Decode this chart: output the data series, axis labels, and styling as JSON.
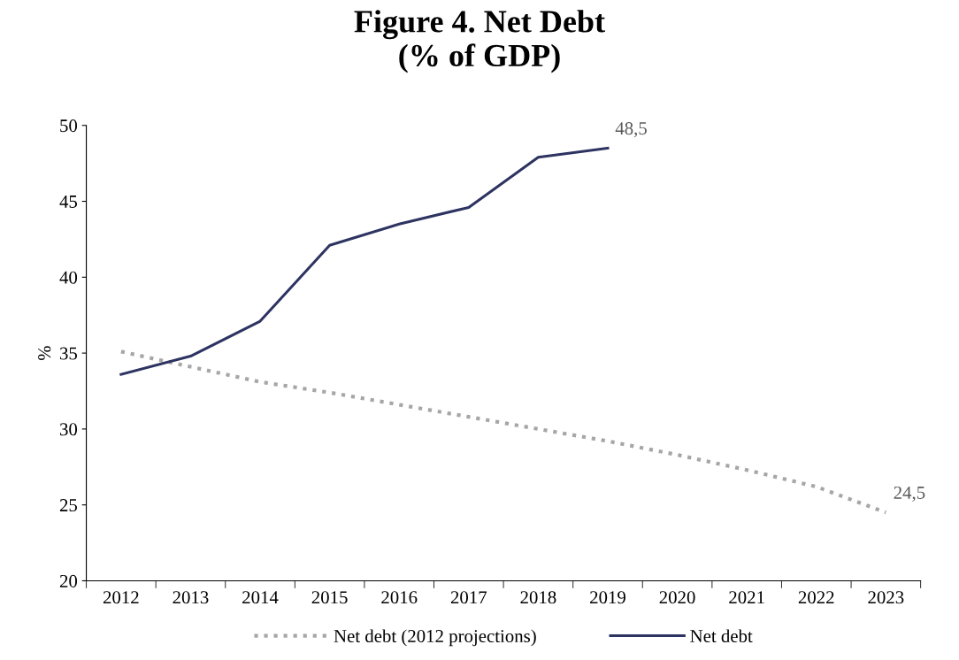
{
  "chart_data": {
    "type": "line",
    "title": "Figure 4. Net Debt\n(% of GDP)",
    "ylabel": "%",
    "categories": [
      "2012",
      "2013",
      "2014",
      "2015",
      "2016",
      "2017",
      "2018",
      "2019",
      "2020",
      "2021",
      "2022",
      "2023"
    ],
    "series": [
      {
        "name": "Net debt (2012 projections)",
        "color": "#a6a6a6",
        "line_style": "dotted",
        "values": [
          35.1,
          34.1,
          33.1,
          32.4,
          31.6,
          30.8,
          30.0,
          29.2,
          28.3,
          27.3,
          26.2,
          24.5
        ],
        "value_labels": [
          null,
          null,
          null,
          null,
          null,
          null,
          null,
          null,
          null,
          null,
          null,
          "24,5"
        ]
      },
      {
        "name": "Net debt",
        "color": "#2e3461",
        "line_style": "solid",
        "values": [
          33.6,
          34.8,
          37.1,
          42.1,
          43.5,
          44.6,
          47.9,
          48.5,
          null,
          null,
          null,
          null
        ],
        "value_labels": [
          null,
          null,
          null,
          null,
          null,
          null,
          null,
          "48,5",
          null,
          null,
          null,
          null
        ]
      }
    ],
    "ylim": [
      20,
      50
    ],
    "yticks": [
      20,
      25,
      30,
      35,
      40,
      45,
      50
    ],
    "grid": false,
    "legend": "bottom",
    "marker": "none"
  }
}
